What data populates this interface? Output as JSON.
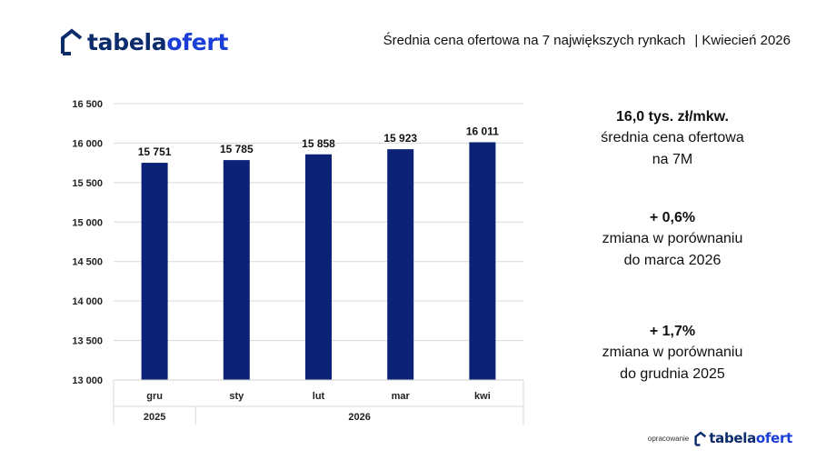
{
  "brand": {
    "name_part1": "tabela",
    "name_part2": "ofert",
    "primary": "#0b2b6b",
    "accent": "#1b3fd6"
  },
  "header": {
    "title": "Średnia cena ofertowa na 7 największych rynkach",
    "period": "| Kwiecień  2026"
  },
  "chart_data": {
    "type": "bar",
    "categories": [
      "gru",
      "sty",
      "lut",
      "mar",
      "kwi"
    ],
    "values": [
      15751,
      15785,
      15858,
      15923,
      16011
    ],
    "value_labels": [
      "15 751",
      "15 785",
      "15 858",
      "15 923",
      "16 011"
    ],
    "groups": [
      {
        "label": "2025",
        "categories": [
          "gru"
        ]
      },
      {
        "label": "2026",
        "categories": [
          "sty",
          "lut",
          "mar",
          "kwi"
        ]
      }
    ],
    "yticks": [
      13000,
      13500,
      14000,
      14500,
      15000,
      15500,
      16000,
      16500
    ],
    "ytick_labels": [
      "13 000",
      "13 500",
      "14 000",
      "14 500",
      "15 000",
      "15 500",
      "16 000",
      "16 500"
    ],
    "ylim": [
      13000,
      16500
    ],
    "grid": true,
    "bar_color": "#0b2277"
  },
  "stats": [
    {
      "value": "16,0 tys. zł/mkw.",
      "label_lines": [
        "średnia cena ofertowa",
        "na 7M"
      ]
    },
    {
      "value": "+ 0,6%",
      "label_lines": [
        "zmiana w porównaniu",
        "do marca 2026"
      ]
    },
    {
      "value": "+ 1,7%",
      "label_lines": [
        "zmiana w porównaniu",
        "do grudnia 2025"
      ]
    }
  ],
  "footer": {
    "note": "opracowanie"
  },
  "icons": {
    "brand_mark": "house-outline-icon"
  }
}
